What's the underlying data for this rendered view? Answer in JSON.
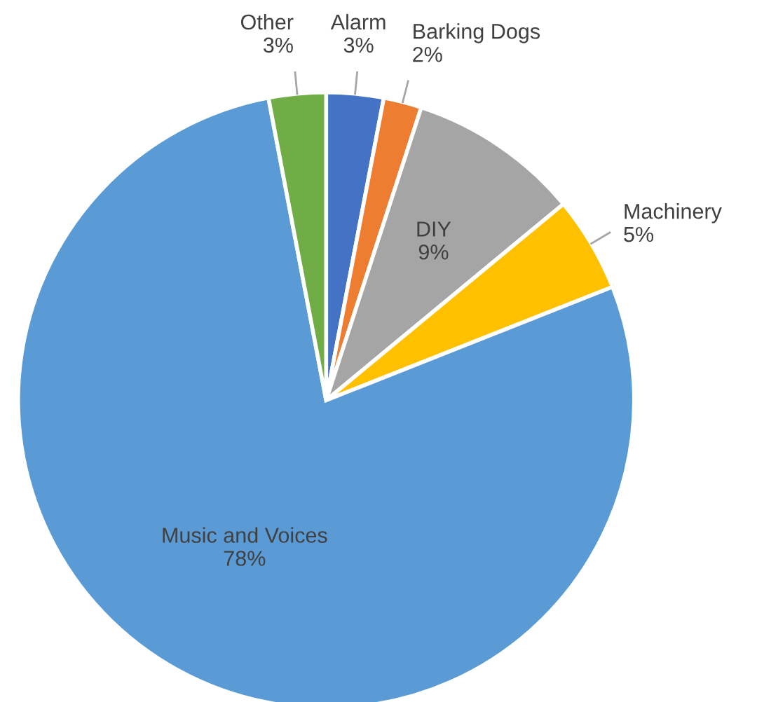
{
  "chart_data": {
    "type": "pie",
    "categories": [
      "Alarm",
      "Barking Dogs",
      "DIY",
      "Machinery",
      "Music and Voices",
      "Other"
    ],
    "values": [
      3,
      2,
      9,
      5,
      78,
      3
    ],
    "colors": [
      "#4472c4",
      "#ed7d31",
      "#a5a5a5",
      "#ffc000",
      "#5b9bd5",
      "#70ad47"
    ],
    "legend": false,
    "value_labels": [
      "3%",
      "2%",
      "9%",
      "5%",
      "78%",
      "3%"
    ]
  }
}
